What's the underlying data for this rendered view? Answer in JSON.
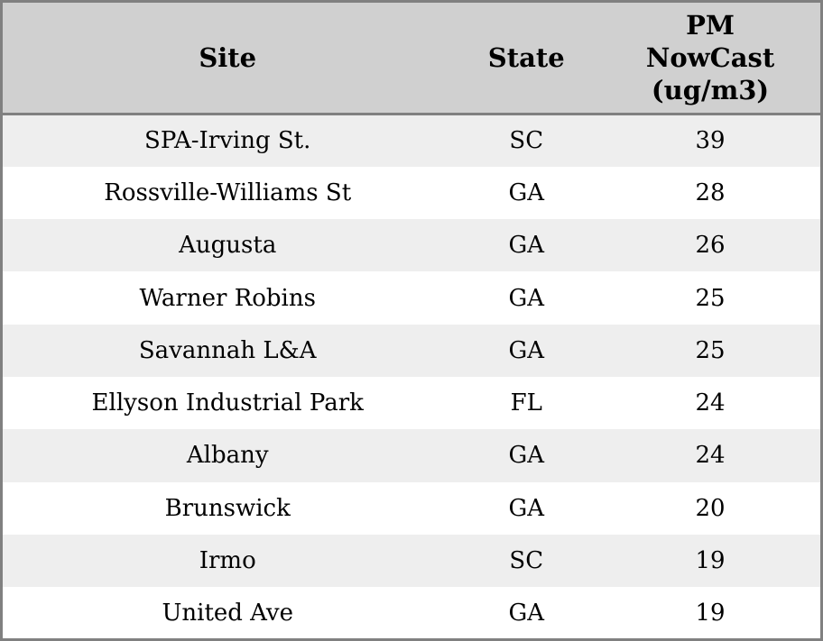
{
  "colors": {
    "border": "#808080",
    "header_bg": "#d0d0d0",
    "row_alt_bg": "#eeeeee",
    "row_bg": "#ffffff",
    "text": "#000000"
  },
  "table": {
    "headers": {
      "site": "Site",
      "state": "State",
      "pm": "PM NowCast (ug/m3)"
    },
    "rows": [
      {
        "site": "SPA-Irving St.",
        "state": "SC",
        "pm": "39"
      },
      {
        "site": "Rossville-Williams St",
        "state": "GA",
        "pm": "28"
      },
      {
        "site": "Augusta",
        "state": "GA",
        "pm": "26"
      },
      {
        "site": "Warner Robins",
        "state": "GA",
        "pm": "25"
      },
      {
        "site": "Savannah L&A",
        "state": "GA",
        "pm": "25"
      },
      {
        "site": "Ellyson Industrial Park",
        "state": "FL",
        "pm": "24"
      },
      {
        "site": "Albany",
        "state": "GA",
        "pm": "24"
      },
      {
        "site": "Brunswick",
        "state": "GA",
        "pm": "20"
      },
      {
        "site": "Irmo",
        "state": "SC",
        "pm": "19"
      },
      {
        "site": "United Ave",
        "state": "GA",
        "pm": "19"
      }
    ]
  },
  "chart_data": {
    "type": "table",
    "title": "",
    "columns": [
      "Site",
      "State",
      "PM NowCast (ug/m3)"
    ],
    "categories": [
      "SPA-Irving St.",
      "Rossville-Williams St",
      "Augusta",
      "Warner Robins",
      "Savannah L&A",
      "Ellyson Industrial Park",
      "Albany",
      "Brunswick",
      "Irmo",
      "United Ave"
    ],
    "states": [
      "SC",
      "GA",
      "GA",
      "GA",
      "GA",
      "FL",
      "GA",
      "GA",
      "SC",
      "GA"
    ],
    "values": [
      39,
      28,
      26,
      25,
      25,
      24,
      24,
      20,
      19,
      19
    ]
  }
}
